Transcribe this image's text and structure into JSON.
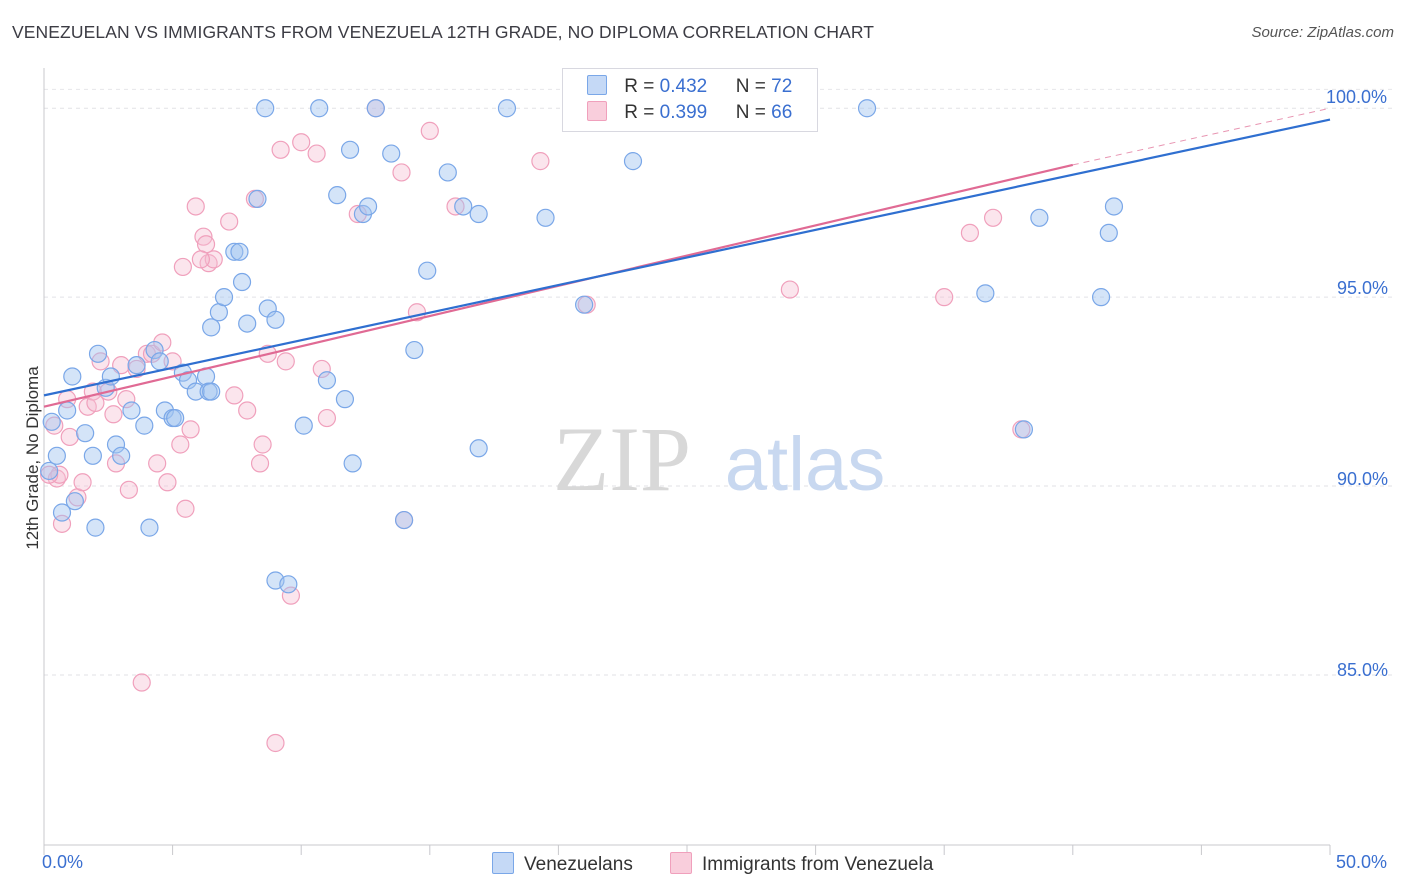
{
  "title": "VENEZUELAN VS IMMIGRANTS FROM VENEZUELA 12TH GRADE, NO DIPLOMA CORRELATION CHART",
  "source": "Source: ZipAtlas.com",
  "watermark": {
    "zip": "ZIP",
    "atlas": "atlas"
  },
  "colors": {
    "blue": "#7aa7e8",
    "blue_line": "#2f6fd0",
    "pink": "#f0a0bc",
    "pink_line": "#e06a94",
    "axis_text": "#3a6fd0"
  },
  "legend": {
    "series1": {
      "r_label": "R = ",
      "r_value": "0.432",
      "n_label": "N = ",
      "n_value": "72"
    },
    "series2": {
      "r_label": "R = ",
      "r_value": "0.399",
      "n_label": "N = ",
      "n_value": "66"
    }
  },
  "bottom_legend": {
    "series1": "Venezuelans",
    "series2": "Immigrants from Venezuela"
  },
  "chart_data": {
    "type": "scatter",
    "title": "VENEZUELAN VS IMMIGRANTS FROM VENEZUELA 12TH GRADE, NO DIPLOMA CORRELATION CHART",
    "xlabel": "",
    "ylabel": "12th Grade, No Diploma",
    "xlim": [
      0,
      50
    ],
    "ylim": [
      80.5,
      100.8
    ],
    "x_tick_labels": [
      "0.0%",
      "50.0%"
    ],
    "y_ticks": [
      85,
      90,
      95,
      100
    ],
    "y_tick_labels": [
      "85.0%",
      "90.0%",
      "95.0%",
      "100.0%"
    ],
    "series": [
      {
        "name": "Venezuelans",
        "trend": {
          "x0": 0,
          "y0": 92.4,
          "x1": 50,
          "y1": 99.7
        },
        "points": [
          [
            0.2,
            90.4
          ],
          [
            0.3,
            91.7
          ],
          [
            0.5,
            90.8
          ],
          [
            0.7,
            89.3
          ],
          [
            0.9,
            92.0
          ],
          [
            1.1,
            92.9
          ],
          [
            1.2,
            89.6
          ],
          [
            1.6,
            91.4
          ],
          [
            1.9,
            90.8
          ],
          [
            2.0,
            88.9
          ],
          [
            2.1,
            93.5
          ],
          [
            2.4,
            92.6
          ],
          [
            2.6,
            92.9
          ],
          [
            2.8,
            91.1
          ],
          [
            3.0,
            90.8
          ],
          [
            3.4,
            92.0
          ],
          [
            3.6,
            93.2
          ],
          [
            3.9,
            91.6
          ],
          [
            4.1,
            88.9
          ],
          [
            4.3,
            93.6
          ],
          [
            4.5,
            93.3
          ],
          [
            4.7,
            92.0
          ],
          [
            5.0,
            91.8
          ],
          [
            5.1,
            91.8
          ],
          [
            5.4,
            93.0
          ],
          [
            5.6,
            92.8
          ],
          [
            5.9,
            92.5
          ],
          [
            6.3,
            92.9
          ],
          [
            6.4,
            92.5
          ],
          [
            6.5,
            94.2
          ],
          [
            6.5,
            92.5
          ],
          [
            6.8,
            94.6
          ],
          [
            7.0,
            95.0
          ],
          [
            7.4,
            96.2
          ],
          [
            7.6,
            96.2
          ],
          [
            7.7,
            95.4
          ],
          [
            7.9,
            94.3
          ],
          [
            8.3,
            97.6
          ],
          [
            8.6,
            100.0
          ],
          [
            8.7,
            94.7
          ],
          [
            9.0,
            94.4
          ],
          [
            9.0,
            87.5
          ],
          [
            9.5,
            87.4
          ],
          [
            10.1,
            91.6
          ],
          [
            10.7,
            100.0
          ],
          [
            11.0,
            92.8
          ],
          [
            11.4,
            97.7
          ],
          [
            11.7,
            92.3
          ],
          [
            11.9,
            98.9
          ],
          [
            12.0,
            90.6
          ],
          [
            12.4,
            97.2
          ],
          [
            12.6,
            97.4
          ],
          [
            12.9,
            100.0
          ],
          [
            13.5,
            98.8
          ],
          [
            14.0,
            89.1
          ],
          [
            14.4,
            93.6
          ],
          [
            14.9,
            95.7
          ],
          [
            15.7,
            98.3
          ],
          [
            16.3,
            97.4
          ],
          [
            16.9,
            97.2
          ],
          [
            16.9,
            91.0
          ],
          [
            18.0,
            100.0
          ],
          [
            19.5,
            97.1
          ],
          [
            21.0,
            94.8
          ],
          [
            22.9,
            98.6
          ],
          [
            32.0,
            100.0
          ],
          [
            36.6,
            95.1
          ],
          [
            38.1,
            91.5
          ],
          [
            38.7,
            97.1
          ],
          [
            41.1,
            95.0
          ],
          [
            41.4,
            96.7
          ],
          [
            41.6,
            97.4
          ]
        ]
      },
      {
        "name": "Immigrants from Venezuela",
        "trend": {
          "x0": 0,
          "y0": 92.1,
          "x1": 40,
          "y1": 98.5
        },
        "trend_extension": {
          "x0": 40,
          "y0": 98.5,
          "x1": 50,
          "y1": 100.0
        },
        "points": [
          [
            0.4,
            91.6
          ],
          [
            0.5,
            90.2
          ],
          [
            0.6,
            90.3
          ],
          [
            0.7,
            89.0
          ],
          [
            0.9,
            92.3
          ],
          [
            1.0,
            91.3
          ],
          [
            1.3,
            89.7
          ],
          [
            1.5,
            90.1
          ],
          [
            1.7,
            92.1
          ],
          [
            1.9,
            92.5
          ],
          [
            2.0,
            92.2
          ],
          [
            2.2,
            93.3
          ],
          [
            2.5,
            92.5
          ],
          [
            2.7,
            91.9
          ],
          [
            2.8,
            90.6
          ],
          [
            3.0,
            93.2
          ],
          [
            3.2,
            92.3
          ],
          [
            3.3,
            89.9
          ],
          [
            3.6,
            93.1
          ],
          [
            3.8,
            84.8
          ],
          [
            4.0,
            93.5
          ],
          [
            4.2,
            93.5
          ],
          [
            4.4,
            90.6
          ],
          [
            4.6,
            93.8
          ],
          [
            4.8,
            90.1
          ],
          [
            5.0,
            93.3
          ],
          [
            5.3,
            91.1
          ],
          [
            5.4,
            95.8
          ],
          [
            5.5,
            89.4
          ],
          [
            5.7,
            91.5
          ],
          [
            5.9,
            97.4
          ],
          [
            6.2,
            96.6
          ],
          [
            6.3,
            96.4
          ],
          [
            6.4,
            95.9
          ],
          [
            6.6,
            96.0
          ],
          [
            7.2,
            97.0
          ],
          [
            7.4,
            92.4
          ],
          [
            7.9,
            92.0
          ],
          [
            8.2,
            97.6
          ],
          [
            8.4,
            90.6
          ],
          [
            8.5,
            91.1
          ],
          [
            8.7,
            93.5
          ],
          [
            9.0,
            83.2
          ],
          [
            9.2,
            98.9
          ],
          [
            9.4,
            93.3
          ],
          [
            9.6,
            87.1
          ],
          [
            10.0,
            99.1
          ],
          [
            10.6,
            98.8
          ],
          [
            10.8,
            93.1
          ],
          [
            11.0,
            91.8
          ],
          [
            12.2,
            97.2
          ],
          [
            12.9,
            100.0
          ],
          [
            13.9,
            98.3
          ],
          [
            14.0,
            89.1
          ],
          [
            14.5,
            94.6
          ],
          [
            15.0,
            99.4
          ],
          [
            16.0,
            97.4
          ],
          [
            19.3,
            98.6
          ],
          [
            21.1,
            94.8
          ],
          [
            29.0,
            95.2
          ],
          [
            35.0,
            95.0
          ],
          [
            36.0,
            96.7
          ],
          [
            36.9,
            97.1
          ],
          [
            38.0,
            91.5
          ],
          [
            0.2,
            90.3
          ],
          [
            6.1,
            96.0
          ]
        ]
      }
    ]
  }
}
